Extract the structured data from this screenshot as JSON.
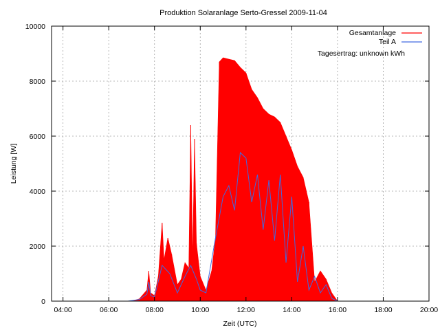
{
  "chart_data": {
    "type": "area",
    "title": "Produktion Solaranlage Serto-Gressel 2009-11-04",
    "xlabel": "Zeit (UTC)",
    "ylabel": "Leistung [W]",
    "xlim": [
      "03:30",
      "20:00"
    ],
    "ylim": [
      0,
      10000
    ],
    "x_ticks": [
      "04:00",
      "06:00",
      "08:00",
      "10:00",
      "12:00",
      "14:00",
      "16:00",
      "18:00",
      "20:00"
    ],
    "y_ticks": [
      "0",
      "2000",
      "4000",
      "6000",
      "8000",
      "10000"
    ],
    "grid": true,
    "legend": "top-right",
    "annotation": "Tagesertrag: unknown kWh",
    "series": [
      {
        "name": "Gesamtanlage",
        "color": "#ff0000",
        "style": "filled-spikes",
        "points": [
          [
            "07:00",
            0
          ],
          [
            "07:20",
            80
          ],
          [
            "07:40",
            400
          ],
          [
            "07:45",
            1100
          ],
          [
            "07:50",
            300
          ],
          [
            "08:00",
            200
          ],
          [
            "08:10",
            900
          ],
          [
            "08:20",
            2850
          ],
          [
            "08:25",
            1500
          ],
          [
            "08:35",
            2300
          ],
          [
            "08:45",
            1700
          ],
          [
            "09:00",
            600
          ],
          [
            "09:10",
            800
          ],
          [
            "09:20",
            1400
          ],
          [
            "09:30",
            1200
          ],
          [
            "09:35",
            6400
          ],
          [
            "09:40",
            1500
          ],
          [
            "09:45",
            5900
          ],
          [
            "09:50",
            2100
          ],
          [
            "10:00",
            900
          ],
          [
            "10:15",
            400
          ],
          [
            "10:30",
            1100
          ],
          [
            "10:40",
            2300
          ],
          [
            "10:50",
            8700
          ],
          [
            "11:00",
            8850
          ],
          [
            "11:15",
            8800
          ],
          [
            "11:30",
            8750
          ],
          [
            "11:45",
            8500
          ],
          [
            "12:00",
            8300
          ],
          [
            "12:15",
            7700
          ],
          [
            "12:30",
            7400
          ],
          [
            "12:45",
            7000
          ],
          [
            "13:00",
            6800
          ],
          [
            "13:15",
            6700
          ],
          [
            "13:30",
            6500
          ],
          [
            "13:45",
            6000
          ],
          [
            "14:00",
            5500
          ],
          [
            "14:15",
            4900
          ],
          [
            "14:30",
            4500
          ],
          [
            "14:45",
            3600
          ],
          [
            "15:00",
            700
          ],
          [
            "15:15",
            1100
          ],
          [
            "15:30",
            800
          ],
          [
            "15:45",
            300
          ],
          [
            "16:00",
            0
          ]
        ]
      },
      {
        "name": "Teil A",
        "color": "#4169e1",
        "style": "line",
        "points": [
          [
            "06:50",
            0
          ],
          [
            "07:20",
            60
          ],
          [
            "07:40",
            250
          ],
          [
            "07:45",
            700
          ],
          [
            "07:50",
            200
          ],
          [
            "08:00",
            150
          ],
          [
            "08:20",
            1300
          ],
          [
            "08:40",
            1000
          ],
          [
            "09:00",
            300
          ],
          [
            "09:20",
            900
          ],
          [
            "09:35",
            1300
          ],
          [
            "09:50",
            800
          ],
          [
            "10:00",
            400
          ],
          [
            "10:15",
            300
          ],
          [
            "10:40",
            2300
          ],
          [
            "11:00",
            3800
          ],
          [
            "11:15",
            4200
          ],
          [
            "11:30",
            3300
          ],
          [
            "11:45",
            5400
          ],
          [
            "12:00",
            5200
          ],
          [
            "12:15",
            3600
          ],
          [
            "12:30",
            4600
          ],
          [
            "12:45",
            2600
          ],
          [
            "13:00",
            4400
          ],
          [
            "13:15",
            2200
          ],
          [
            "13:30",
            4600
          ],
          [
            "13:45",
            1400
          ],
          [
            "14:00",
            3800
          ],
          [
            "14:15",
            700
          ],
          [
            "14:30",
            2000
          ],
          [
            "14:45",
            400
          ],
          [
            "15:00",
            900
          ],
          [
            "15:15",
            300
          ],
          [
            "15:30",
            600
          ],
          [
            "15:45",
            100
          ],
          [
            "16:00",
            0
          ]
        ]
      }
    ]
  }
}
